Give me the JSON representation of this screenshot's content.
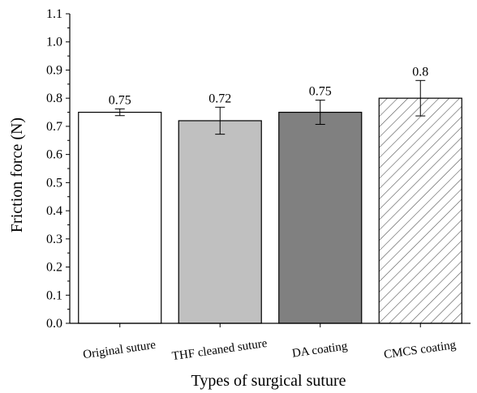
{
  "chart_data": {
    "type": "bar",
    "title": "",
    "xlabel": "Types of surgical suture",
    "ylabel": "Friction force (N)",
    "ylim": [
      0,
      1.1
    ],
    "yticks": [
      "0.0",
      "0.1",
      "0.2",
      "0.3",
      "0.4",
      "0.5",
      "0.6",
      "0.7",
      "0.8",
      "0.9",
      "1.0",
      "1.1"
    ],
    "categories": [
      "Original suture",
      "THF cleaned suture",
      "DA coating",
      "CMCS coating"
    ],
    "values": [
      0.75,
      0.72,
      0.75,
      0.8
    ],
    "errors": [
      0.012,
      0.048,
      0.043,
      0.063
    ],
    "labels": [
      "0.75",
      "0.72",
      "0.75",
      "0.8"
    ],
    "fills": [
      "#ffffff",
      "#c0c0c0",
      "#808080",
      "hatch"
    ],
    "grid": false,
    "legend": "none"
  }
}
